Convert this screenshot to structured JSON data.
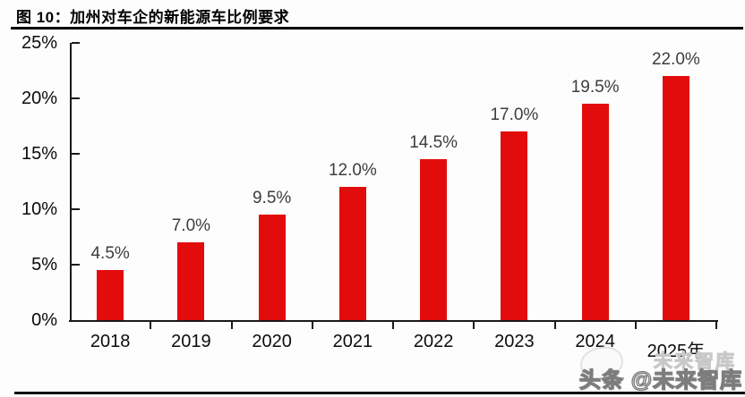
{
  "figure": {
    "title_full": "图 10：加州对车企的新能源车比例要求"
  },
  "chart_data": {
    "type": "bar",
    "title": "加州对车企的新能源车比例要求",
    "categories": [
      "2018",
      "2019",
      "2020",
      "2021",
      "2022",
      "2023",
      "2024",
      "2025年"
    ],
    "values": [
      4.5,
      7.0,
      9.5,
      12.0,
      14.5,
      17.0,
      19.5,
      22.0
    ],
    "value_labels": [
      "4.5%",
      "7.0%",
      "9.5%",
      "12.0%",
      "14.5%",
      "17.0%",
      "19.5%",
      "22.0%"
    ],
    "ylim": [
      0,
      25
    ],
    "ytick_labels": [
      "0%",
      "5%",
      "10%",
      "15%",
      "20%",
      "25%"
    ],
    "xlabel": "",
    "ylabel": "",
    "grid": false,
    "legend": false,
    "bar_color": "#e20c0c",
    "value_label_color": "#3d3d3d",
    "axis_color": "#1a1a1a"
  },
  "watermark": {
    "text": "头条 @未来智库",
    "ghost_text": "未来智库"
  }
}
